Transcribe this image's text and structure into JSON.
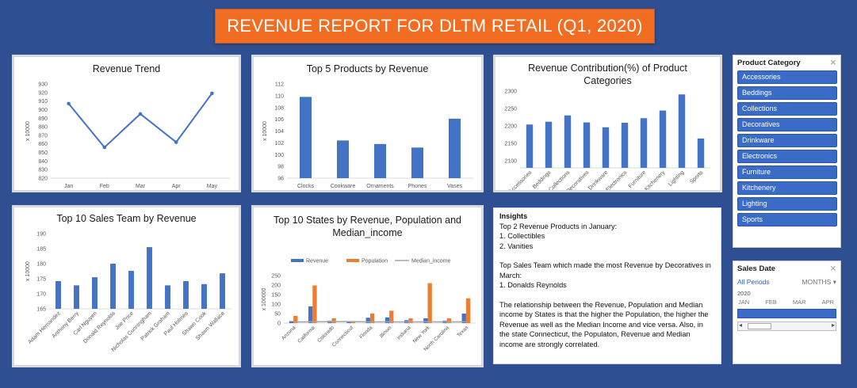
{
  "title": "REVENUE REPORT FOR DLTM RETAIL (Q1, 2020)",
  "colors": {
    "revenue": "#4472c4",
    "population": "#ed7d31",
    "median": "#a5a5a5",
    "banner": "#f26d21",
    "background": "#2f4f93"
  },
  "charts": {
    "trend": {
      "title": "Revenue Trend",
      "ylabel": "x 10000"
    },
    "products": {
      "title": "Top 5 Products by Revenue",
      "ylabel": "x 10000"
    },
    "contrib": {
      "title": "Revenue Contribution(%) of Product Categories"
    },
    "sales": {
      "title": "Top 10 Sales Team by Revenue",
      "ylabel": "x 10000"
    },
    "states": {
      "title": "Top 10 States by Revenue, Population and Median_income",
      "ylabel": "x 100000"
    }
  },
  "chart_data": [
    {
      "type": "line",
      "title": "Revenue Trend",
      "ylabel": "x 10000",
      "categories": [
        "Jan",
        "Feb",
        "Mar",
        "Apr",
        "May"
      ],
      "values": [
        907,
        856,
        895,
        862,
        919
      ],
      "ylim": [
        820,
        930
      ],
      "yticks": [
        820,
        830,
        840,
        850,
        860,
        870,
        880,
        890,
        900,
        910,
        920,
        930
      ],
      "grid": false
    },
    {
      "type": "bar",
      "title": "Top 5 Products by Revenue",
      "ylabel": "x 10000",
      "categories": [
        "Clocks",
        "Cookware",
        "Ornaments",
        "Phones",
        "Vases"
      ],
      "values": [
        109.8,
        102.4,
        101.8,
        101.2,
        106.1
      ],
      "ylim": [
        96,
        112
      ],
      "yticks": [
        96,
        98,
        100,
        102,
        104,
        106,
        108,
        110,
        112
      ],
      "grid": false
    },
    {
      "type": "bar",
      "title": "Revenue Contribution(%) of Product Categories",
      "categories": [
        "Accessories",
        "Beddings",
        "Collections",
        "Decoratives",
        "Drinkware",
        "Electronics",
        "Furniture",
        "Kitchenery",
        "Lighting",
        "Sports"
      ],
      "values": [
        2204,
        2212,
        2230,
        2210,
        2196,
        2209,
        2222,
        2244,
        2290,
        2164
      ],
      "ylim": [
        2080,
        2320
      ],
      "yticks": [
        2100,
        2150,
        2200,
        2250,
        2300
      ],
      "grid": false
    },
    {
      "type": "bar",
      "title": "Top 10 Sales Team by Revenue",
      "ylabel": "x 10000",
      "categories": [
        "Adam Hernandez",
        "Anthony Berry",
        "Carl Nguyen",
        "Donald Reynolds",
        "Joe Price",
        "Nicholas Cunningham",
        "Patrick Graham",
        "Paul Holmes",
        "Shawn Cook",
        "Shawn Wallace"
      ],
      "values": [
        174.2,
        172.8,
        175.5,
        180,
        177.6,
        185.5,
        172.8,
        174.2,
        173.2,
        176.8
      ],
      "ylim": [
        165,
        190
      ],
      "yticks": [
        165,
        170,
        175,
        180,
        185,
        190
      ],
      "grid": false
    },
    {
      "type": "bar",
      "title": "Top 10 States by Revenue, Population and Median_income",
      "ylabel": "x 100000",
      "categories": [
        "Arizona",
        "California",
        "Colorado",
        "Connecticut",
        "Florida",
        "Illinois",
        "Indiana",
        "New York",
        "North Carolina",
        "Texas"
      ],
      "series": [
        {
          "name": "Revenue",
          "type": "bar",
          "values": [
            10,
            88,
            12,
            10,
            28,
            30,
            15,
            25,
            12,
            50
          ]
        },
        {
          "name": "Population",
          "type": "bar",
          "values": [
            38,
            198,
            25,
            10,
            50,
            65,
            25,
            210,
            25,
            130
          ]
        },
        {
          "name": "Median_income",
          "type": "line",
          "values": [
            6,
            7,
            8,
            8,
            6,
            7,
            6,
            7,
            6,
            7
          ]
        }
      ],
      "ylim": [
        0,
        250
      ],
      "yticks": [
        0,
        50,
        100,
        150,
        200,
        250
      ],
      "legend": "top",
      "grid": false
    }
  ],
  "insights": {
    "heading": "Insights",
    "p1_head": "Top 2 Revenue Products in January:",
    "p1_item1": "1. Collectibles",
    "p1_item2": "2. Vanities",
    "p2_head": "Top Sales Team which made the most Revenue by Decoratives in March:",
    "p2_item1": "1. Donalds Reynolds",
    "p3": "The relationship between the Revenue, Population and Median income by States is that the higher the Population, the higher the Revenue as well as the Median Income and vice versa. Also, in the state Connecticut, the Populaton, Revenue and Median income are strongly correlated."
  },
  "category_slicer": {
    "title": "Product Category",
    "items": [
      "Accessories",
      "Beddings",
      "Collections",
      "Decoratives",
      "Drinkware",
      "Electronics",
      "Furniture",
      "Kitchenery",
      "Lighting",
      "Sports"
    ]
  },
  "date_slicer": {
    "title": "Sales Date",
    "periods_label": "All Periods",
    "level_label": "MONTHS",
    "year": "2020",
    "months": [
      "JAN",
      "FEB",
      "MAR",
      "APR"
    ]
  }
}
